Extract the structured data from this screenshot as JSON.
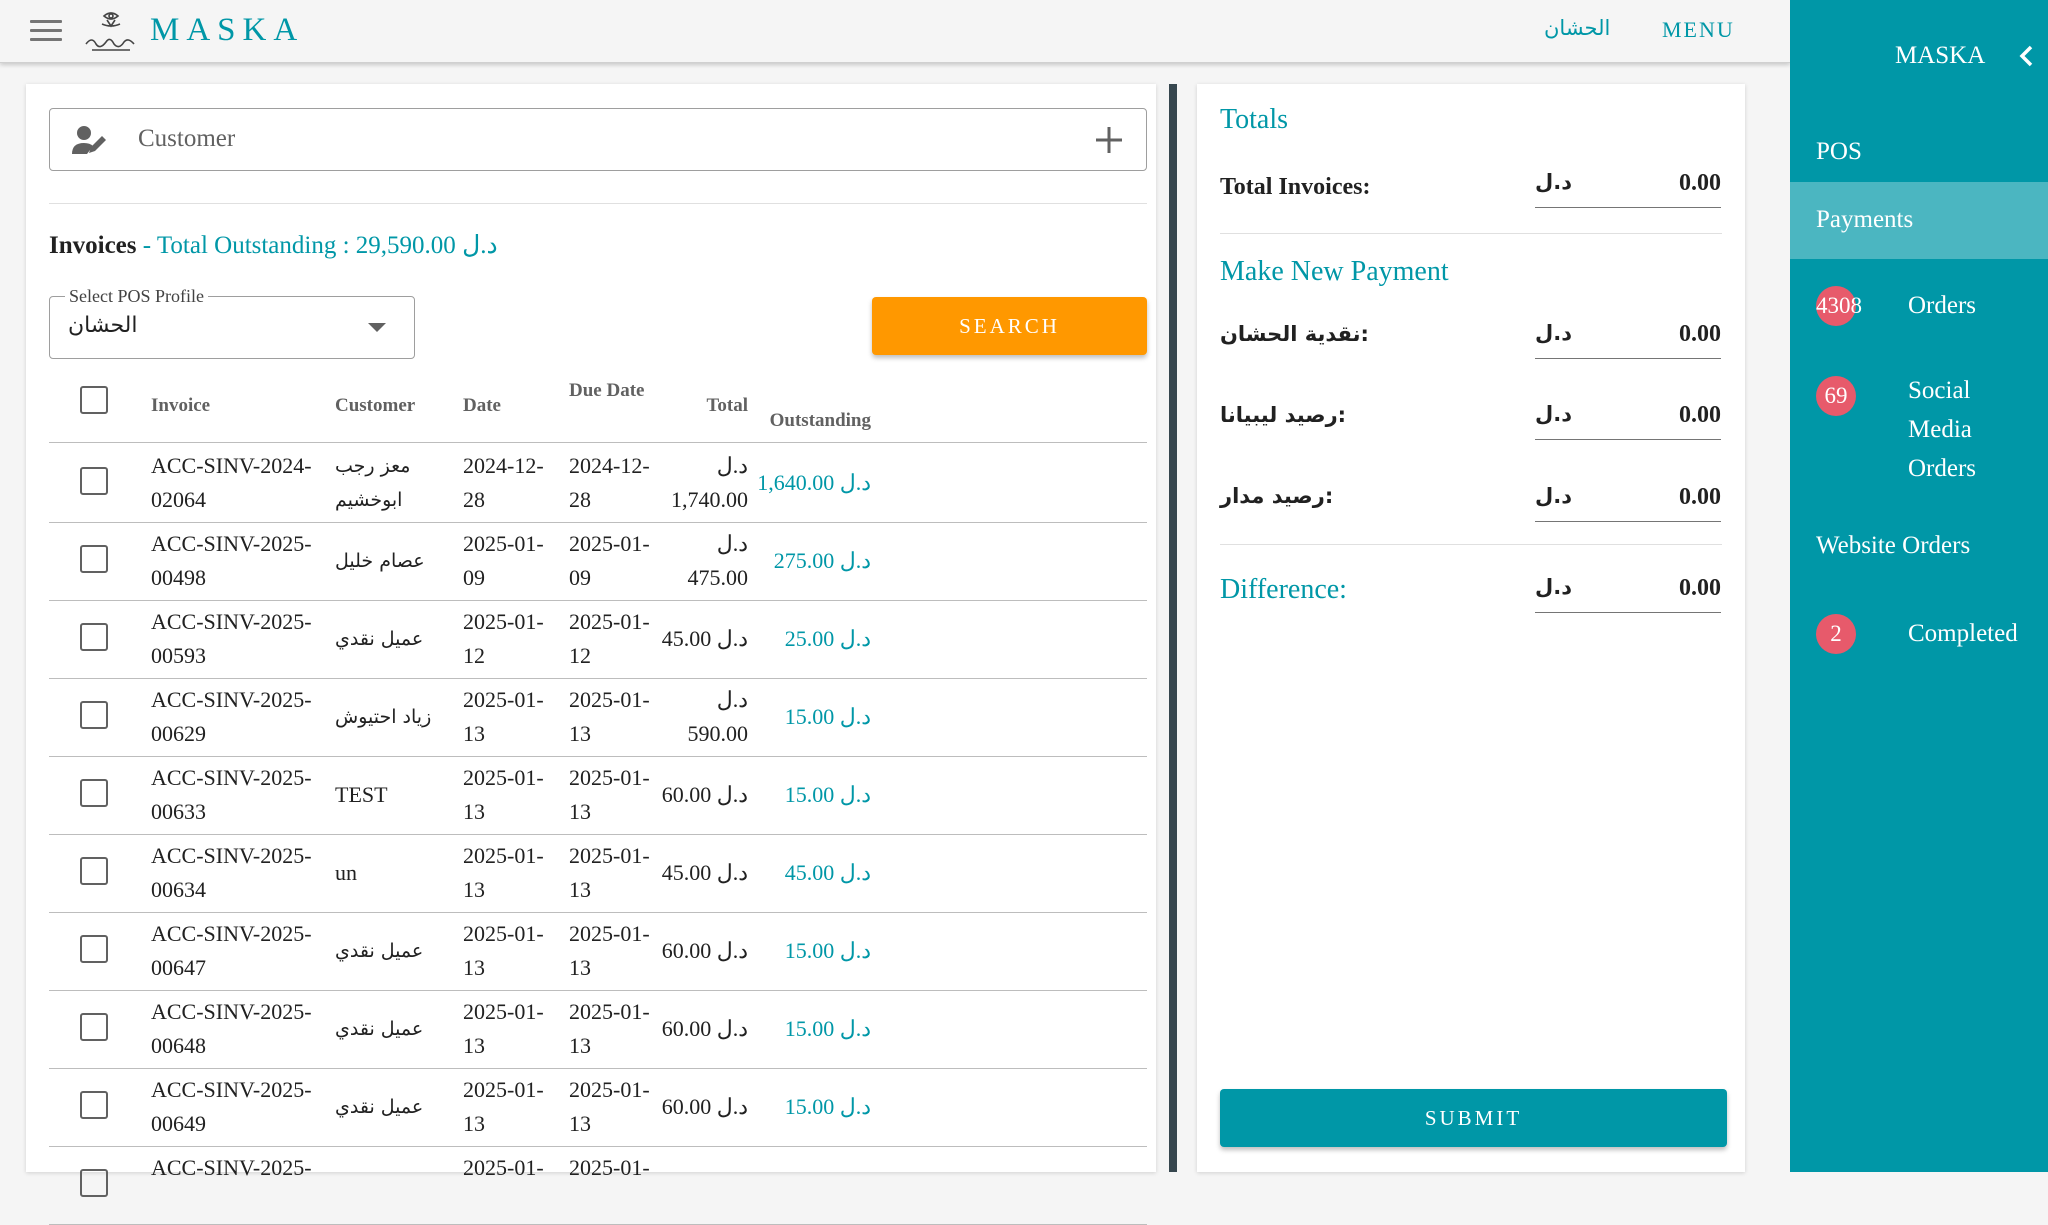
{
  "header": {
    "brand": "MASKA",
    "arabic_link": "الحشان",
    "menu_label": "MENU"
  },
  "drawer": {
    "title": "MASKA",
    "items": [
      {
        "label": "POS"
      },
      {
        "label": "Payments",
        "active": true
      },
      {
        "label": "Orders",
        "badge": "4308"
      },
      {
        "label": "Social Media Orders",
        "line1": "Social",
        "line2": "Media",
        "line3": "Orders",
        "badge": "69"
      },
      {
        "label": "Website Orders"
      },
      {
        "label": "Completed",
        "badge": "2"
      }
    ]
  },
  "customer": {
    "placeholder": "Customer"
  },
  "invoices": {
    "title": "Invoices",
    "outstanding_prefix": "- Total Outstanding : 29,590.00 د.ل"
  },
  "pos_profile": {
    "label": "Select POS Profile",
    "value": "الحشان"
  },
  "search_label": "SEARCH",
  "table": {
    "headers": {
      "invoice": "Invoice",
      "customer": "Customer",
      "date": "Date",
      "due_date": "Due Date",
      "total": "Total",
      "outstanding": "Outstanding"
    },
    "rows": [
      {
        "inv1": "ACC-SINV-2024-",
        "inv2": "02064",
        "cust1": "معز رجب",
        "cust2": "ابوخشيم",
        "d1": "2024-12-",
        "d2": "28",
        "dd1": "2024-12-",
        "dd2": "28",
        "t1": "د.ل",
        "t2": "1,740.00",
        "out": "1,640.00 د.ل"
      },
      {
        "inv1": "ACC-SINV-2025-",
        "inv2": "00498",
        "cust1": "عصام خليل",
        "cust2": "",
        "d1": "2025-01-",
        "d2": "09",
        "dd1": "2025-01-",
        "dd2": "09",
        "t1": "د.ل",
        "t2": "475.00",
        "out": "275.00 د.ل"
      },
      {
        "inv1": "ACC-SINV-2025-",
        "inv2": "00593",
        "cust1": "عميل نقدي",
        "cust2": "",
        "d1": "2025-01-",
        "d2": "12",
        "dd1": "2025-01-",
        "dd2": "12",
        "t1": "45.00 د.ل",
        "t2": "",
        "out": "25.00 د.ل"
      },
      {
        "inv1": "ACC-SINV-2025-",
        "inv2": "00629",
        "cust1": "زياد احتيوش",
        "cust2": "",
        "d1": "2025-01-",
        "d2": "13",
        "dd1": "2025-01-",
        "dd2": "13",
        "t1": "د.ل",
        "t2": "590.00",
        "out": "15.00 د.ل"
      },
      {
        "inv1": "ACC-SINV-2025-",
        "inv2": "00633",
        "cust1": "TEST",
        "cust2": "",
        "d1": "2025-01-",
        "d2": "13",
        "dd1": "2025-01-",
        "dd2": "13",
        "t1": "60.00 د.ل",
        "t2": "",
        "out": "15.00 د.ل"
      },
      {
        "inv1": "ACC-SINV-2025-",
        "inv2": "00634",
        "cust1": "un",
        "cust2": "",
        "d1": "2025-01-",
        "d2": "13",
        "dd1": "2025-01-",
        "dd2": "13",
        "t1": "45.00 د.ل",
        "t2": "",
        "out": "45.00 د.ل"
      },
      {
        "inv1": "ACC-SINV-2025-",
        "inv2": "00647",
        "cust1": "عميل نقدي",
        "cust2": "",
        "d1": "2025-01-",
        "d2": "13",
        "dd1": "2025-01-",
        "dd2": "13",
        "t1": "60.00 د.ل",
        "t2": "",
        "out": "15.00 د.ل"
      },
      {
        "inv1": "ACC-SINV-2025-",
        "inv2": "00648",
        "cust1": "عميل نقدي",
        "cust2": "",
        "d1": "2025-01-",
        "d2": "13",
        "dd1": "2025-01-",
        "dd2": "13",
        "t1": "60.00 د.ل",
        "t2": "",
        "out": "15.00 د.ل"
      },
      {
        "inv1": "ACC-SINV-2025-",
        "inv2": "00649",
        "cust1": "عميل نقدي",
        "cust2": "",
        "d1": "2025-01-",
        "d2": "13",
        "dd1": "2025-01-",
        "dd2": "13",
        "t1": "60.00 د.ل",
        "t2": "",
        "out": "15.00 د.ل"
      },
      {
        "inv1": "ACC-SINV-2025-",
        "inv2": "",
        "cust1": "",
        "cust2": "",
        "d1": "2025-01-",
        "d2": "",
        "dd1": "2025-01-",
        "dd2": "",
        "t1": "",
        "t2": "",
        "out": ""
      }
    ]
  },
  "payment": {
    "totals_heading": "Totals",
    "total_invoices_label": "Total Invoices:",
    "total_invoices_value": "0.00",
    "make_payment_heading": "Make New Payment",
    "methods": [
      {
        "label": "نقدية الحشان:",
        "value": "0.00"
      },
      {
        "label": "رصيد ليبيانا:",
        "value": "0.00"
      },
      {
        "label": "رصيد مدار:",
        "value": "0.00"
      }
    ],
    "difference_label": "Difference:",
    "difference_value": "0.00",
    "currency": "د.ل",
    "submit_label": "SUBMIT"
  },
  "colors": {
    "accent": "#0097a7",
    "search_button": "#ff9800",
    "badge": "#e75a6b",
    "drawer_active": "#4bb6c1"
  }
}
